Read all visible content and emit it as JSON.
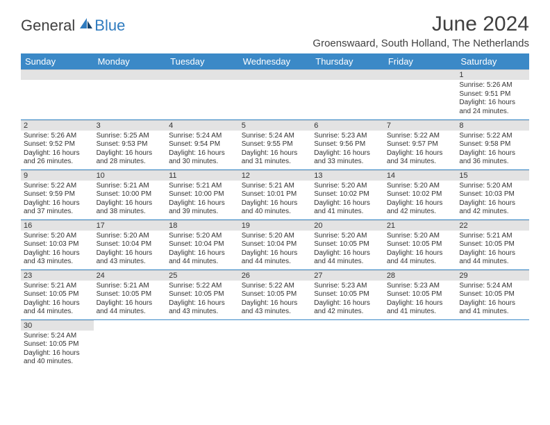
{
  "brand": {
    "part1": "General",
    "part2": "Blue"
  },
  "title": "June 2024",
  "location": "Groenswaard, South Holland, The Netherlands",
  "colors": {
    "header_bg": "#3b89c7",
    "header_text": "#ffffff",
    "daynum_bg": "#e3e3e3",
    "rule": "#3b89c7",
    "text": "#333333",
    "logo_blue": "#2f7bbf"
  },
  "weekdays": [
    "Sunday",
    "Monday",
    "Tuesday",
    "Wednesday",
    "Thursday",
    "Friday",
    "Saturday"
  ],
  "leading_blanks": 6,
  "days": [
    {
      "n": 1,
      "sunrise": "5:26 AM",
      "sunset": "9:51 PM",
      "daylight": "16 hours and 24 minutes."
    },
    {
      "n": 2,
      "sunrise": "5:26 AM",
      "sunset": "9:52 PM",
      "daylight": "16 hours and 26 minutes."
    },
    {
      "n": 3,
      "sunrise": "5:25 AM",
      "sunset": "9:53 PM",
      "daylight": "16 hours and 28 minutes."
    },
    {
      "n": 4,
      "sunrise": "5:24 AM",
      "sunset": "9:54 PM",
      "daylight": "16 hours and 30 minutes."
    },
    {
      "n": 5,
      "sunrise": "5:24 AM",
      "sunset": "9:55 PM",
      "daylight": "16 hours and 31 minutes."
    },
    {
      "n": 6,
      "sunrise": "5:23 AM",
      "sunset": "9:56 PM",
      "daylight": "16 hours and 33 minutes."
    },
    {
      "n": 7,
      "sunrise": "5:22 AM",
      "sunset": "9:57 PM",
      "daylight": "16 hours and 34 minutes."
    },
    {
      "n": 8,
      "sunrise": "5:22 AM",
      "sunset": "9:58 PM",
      "daylight": "16 hours and 36 minutes."
    },
    {
      "n": 9,
      "sunrise": "5:22 AM",
      "sunset": "9:59 PM",
      "daylight": "16 hours and 37 minutes."
    },
    {
      "n": 10,
      "sunrise": "5:21 AM",
      "sunset": "10:00 PM",
      "daylight": "16 hours and 38 minutes."
    },
    {
      "n": 11,
      "sunrise": "5:21 AM",
      "sunset": "10:00 PM",
      "daylight": "16 hours and 39 minutes."
    },
    {
      "n": 12,
      "sunrise": "5:21 AM",
      "sunset": "10:01 PM",
      "daylight": "16 hours and 40 minutes."
    },
    {
      "n": 13,
      "sunrise": "5:20 AM",
      "sunset": "10:02 PM",
      "daylight": "16 hours and 41 minutes."
    },
    {
      "n": 14,
      "sunrise": "5:20 AM",
      "sunset": "10:02 PM",
      "daylight": "16 hours and 42 minutes."
    },
    {
      "n": 15,
      "sunrise": "5:20 AM",
      "sunset": "10:03 PM",
      "daylight": "16 hours and 42 minutes."
    },
    {
      "n": 16,
      "sunrise": "5:20 AM",
      "sunset": "10:03 PM",
      "daylight": "16 hours and 43 minutes."
    },
    {
      "n": 17,
      "sunrise": "5:20 AM",
      "sunset": "10:04 PM",
      "daylight": "16 hours and 43 minutes."
    },
    {
      "n": 18,
      "sunrise": "5:20 AM",
      "sunset": "10:04 PM",
      "daylight": "16 hours and 44 minutes."
    },
    {
      "n": 19,
      "sunrise": "5:20 AM",
      "sunset": "10:04 PM",
      "daylight": "16 hours and 44 minutes."
    },
    {
      "n": 20,
      "sunrise": "5:20 AM",
      "sunset": "10:05 PM",
      "daylight": "16 hours and 44 minutes."
    },
    {
      "n": 21,
      "sunrise": "5:20 AM",
      "sunset": "10:05 PM",
      "daylight": "16 hours and 44 minutes."
    },
    {
      "n": 22,
      "sunrise": "5:21 AM",
      "sunset": "10:05 PM",
      "daylight": "16 hours and 44 minutes."
    },
    {
      "n": 23,
      "sunrise": "5:21 AM",
      "sunset": "10:05 PM",
      "daylight": "16 hours and 44 minutes."
    },
    {
      "n": 24,
      "sunrise": "5:21 AM",
      "sunset": "10:05 PM",
      "daylight": "16 hours and 44 minutes."
    },
    {
      "n": 25,
      "sunrise": "5:22 AM",
      "sunset": "10:05 PM",
      "daylight": "16 hours and 43 minutes."
    },
    {
      "n": 26,
      "sunrise": "5:22 AM",
      "sunset": "10:05 PM",
      "daylight": "16 hours and 43 minutes."
    },
    {
      "n": 27,
      "sunrise": "5:23 AM",
      "sunset": "10:05 PM",
      "daylight": "16 hours and 42 minutes."
    },
    {
      "n": 28,
      "sunrise": "5:23 AM",
      "sunset": "10:05 PM",
      "daylight": "16 hours and 41 minutes."
    },
    {
      "n": 29,
      "sunrise": "5:24 AM",
      "sunset": "10:05 PM",
      "daylight": "16 hours and 41 minutes."
    },
    {
      "n": 30,
      "sunrise": "5:24 AM",
      "sunset": "10:05 PM",
      "daylight": "16 hours and 40 minutes."
    }
  ],
  "labels": {
    "sunrise": "Sunrise:",
    "sunset": "Sunset:",
    "daylight": "Daylight:"
  }
}
